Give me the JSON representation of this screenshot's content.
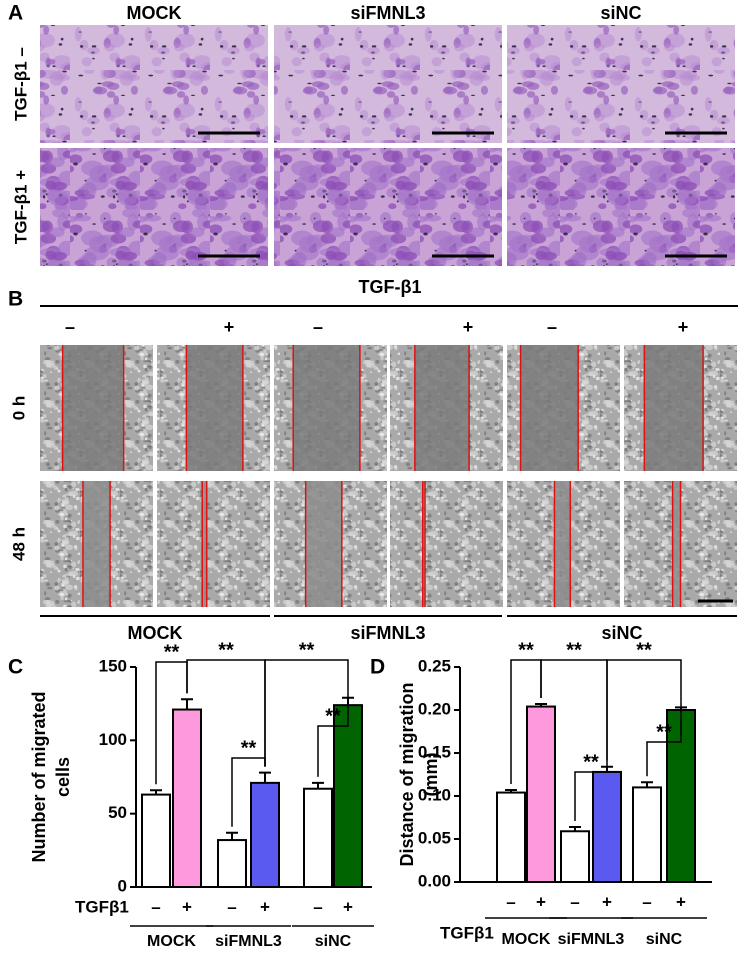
{
  "panel_a": {
    "label": "A",
    "columns": [
      "MOCK",
      "siFMNL3",
      "siNC"
    ],
    "rows": [
      "TGF-β1 –",
      "TGF-β1 +"
    ]
  },
  "panel_b": {
    "label": "B",
    "treatment": "TGF-β1",
    "signs": [
      "–",
      "+",
      "–",
      "+",
      "–",
      "+"
    ],
    "rows": [
      "0 h",
      "48 h"
    ],
    "groups": [
      "MOCK",
      "siFMNL3",
      "siNC"
    ]
  },
  "chart_data": [
    {
      "type": "bar",
      "panel_label": "C",
      "y_label": [
        "Number of migrated",
        "cells"
      ],
      "row_label": "TGFβ1",
      "categories": [
        "–",
        "+",
        "–",
        "+",
        "–",
        "+"
      ],
      "groups": [
        "MOCK",
        "siFMNL3",
        "siNC"
      ],
      "values": [
        63,
        121,
        32,
        71,
        67,
        124
      ],
      "errors": [
        3,
        7,
        5,
        7,
        4,
        5
      ],
      "colors": [
        "#ffffff",
        "#ff99dd",
        "#ffffff",
        "#5a5af0",
        "#ffffff",
        "#006400"
      ],
      "ylim": [
        0,
        150
      ],
      "yticks": [
        0,
        50,
        100,
        150
      ],
      "significance": [
        "**",
        "**",
        "**",
        "**",
        "**"
      ]
    },
    {
      "type": "bar",
      "panel_label": "D",
      "y_label": [
        "Distance of migration",
        "(mm)"
      ],
      "row_label": "TGFβ1",
      "categories": [
        "–",
        "+",
        "–",
        "+",
        "–",
        "+"
      ],
      "groups": [
        "MOCK",
        "siFMNL3",
        "siNC"
      ],
      "values": [
        0.104,
        0.204,
        0.059,
        0.128,
        0.11,
        0.2
      ],
      "errors": [
        0.003,
        0.003,
        0.005,
        0.006,
        0.006,
        0.003
      ],
      "colors": [
        "#ffffff",
        "#ff99dd",
        "#ffffff",
        "#5a5af0",
        "#ffffff",
        "#006400"
      ],
      "ylim": [
        0,
        0.25
      ],
      "yticks": [
        {
          "value": 0,
          "label": "0.00"
        },
        0.05,
        {
          "value": 0.1,
          "label": "0.10"
        },
        0.15,
        {
          "value": 0.2,
          "label": "0.20"
        },
        0.25
      ],
      "significance": [
        "**",
        "**",
        "**",
        "**",
        "**"
      ]
    }
  ]
}
